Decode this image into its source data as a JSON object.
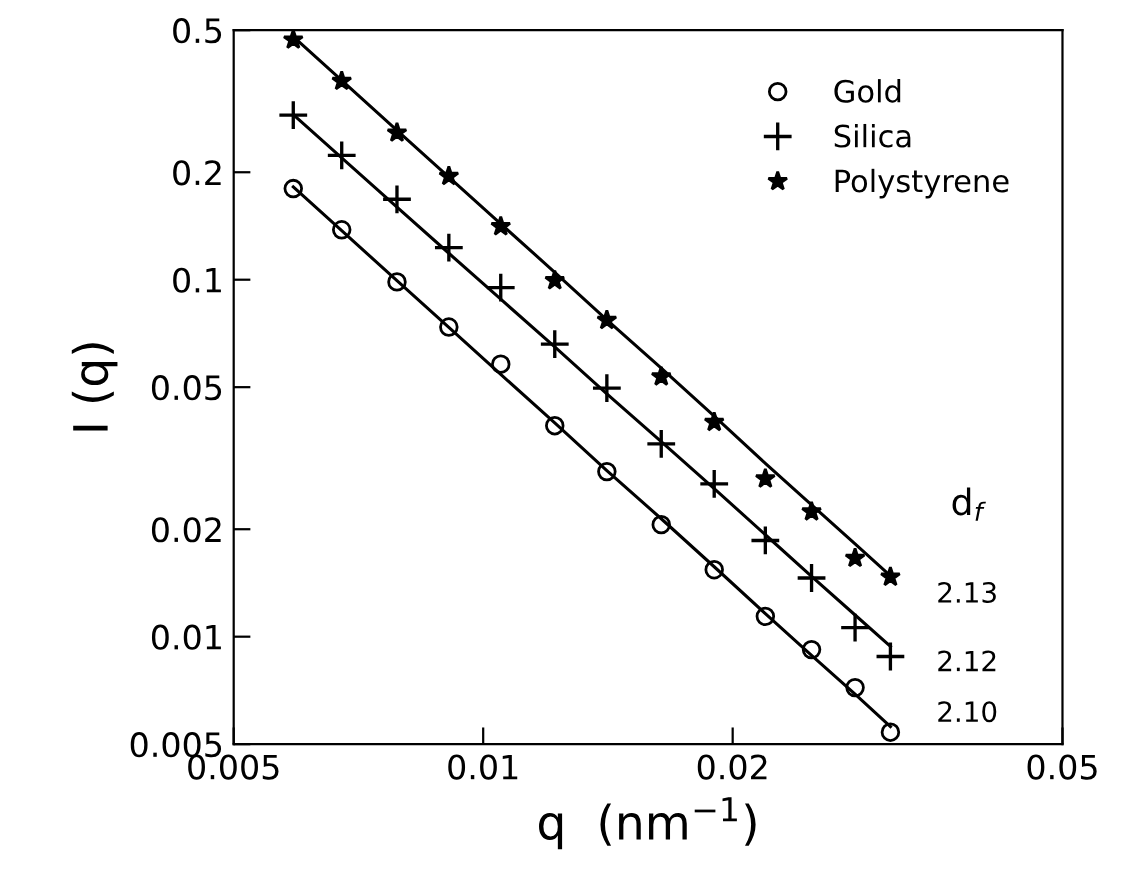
{
  "chart_data": {
    "type": "scatter",
    "xlabel": "q  (nm$^{−1}$)",
    "ylabel": "I (q)",
    "log": "xy",
    "xlim": [
      0.005,
      0.05
    ],
    "xticks": [
      0.005,
      0.01,
      0.02,
      0.05
    ],
    "ylim": [
      0.005,
      0.5
    ],
    "yticks": [
      0.005,
      0.01,
      0.02,
      0.05,
      0.1,
      0.2,
      0.5
    ],
    "grid": false,
    "legend": "top right",
    "x": [
      0.0059,
      0.00675,
      0.00787,
      0.00909,
      0.0105,
      0.0122,
      0.0141,
      0.0164,
      0.019,
      0.0219,
      0.0249,
      0.0281,
      0.031
    ],
    "series": [
      {
        "name": "Gold",
        "color": "#000000",
        "marker": "circle",
        "values": [
          0.18,
          0.138,
          0.0986,
          0.0737,
          0.058,
          0.039,
          0.029,
          0.0206,
          0.0154,
          0.0114,
          0.0092,
          0.0072,
          0.0054
        ]
      },
      {
        "name": "Silica",
        "color": "#000000",
        "marker": "cross",
        "values": [
          0.289,
          0.223,
          0.168,
          0.123,
          0.095,
          0.066,
          0.0497,
          0.0347,
          0.0268,
          0.0186,
          0.0146,
          0.0106,
          0.0088
        ]
      },
      {
        "name": "Polystyrene",
        "color": "#000000",
        "marker": "star",
        "values": [
          0.47,
          0.36,
          0.258,
          0.195,
          0.141,
          0.0995,
          0.077,
          0.0535,
          0.0399,
          0.0277,
          0.0224,
          0.0166,
          0.0147
        ]
      },
      {
        "type": "line",
        "color": "#000000",
        "values": [
          0.182,
          0.1372,
          0.0994,
          0.0735,
          0.0543,
          0.0397,
          0.0292,
          0.0214,
          0.0157,
          0.0116,
          0.00886,
          0.0069,
          0.0056
        ]
      },
      {
        "type": "line",
        "color": "#000000",
        "values": [
          0.29,
          0.2195,
          0.1597,
          0.1186,
          0.0882,
          0.0648,
          0.0479,
          0.0352,
          0.026,
          0.0193,
          0.01476,
          0.0115,
          0.0094
        ]
      },
      {
        "type": "line",
        "color": "#000000",
        "values": [
          0.48,
          0.362,
          0.262,
          0.1939,
          0.1434,
          0.1049,
          0.0772,
          0.0565,
          0.0415,
          0.0306,
          0.0234,
          0.0182,
          0.0148
        ]
      }
    ],
    "annotations": [
      "d$_{f}$",
      "2.13",
      "2.12",
      "2.10"
    ]
  }
}
